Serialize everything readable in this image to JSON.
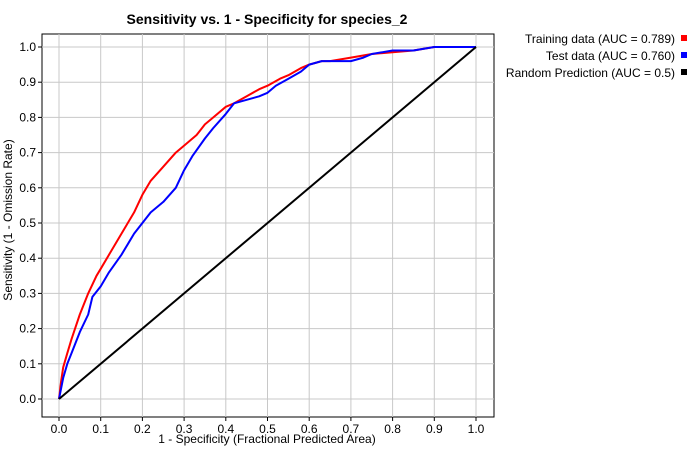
{
  "chart_data": {
    "type": "line",
    "title": "Sensitivity vs. 1 - Specificity for species_2",
    "xlabel": "1 - Specificity  (Fractional Predicted Area)",
    "ylabel": "Sensitivity  (1 - Omission Rate)",
    "xlim": [
      0,
      1
    ],
    "ylim": [
      0,
      1
    ],
    "xticks": [
      "0.0",
      "0.1",
      "0.2",
      "0.3",
      "0.4",
      "0.5",
      "0.6",
      "0.7",
      "0.8",
      "0.9",
      "1.0"
    ],
    "yticks": [
      "0.0",
      "0.1",
      "0.2",
      "0.3",
      "0.4",
      "0.5",
      "0.6",
      "0.7",
      "0.8",
      "0.9",
      "1.0"
    ],
    "grid": true,
    "legend_position": "top-right outside",
    "series": [
      {
        "name": "Training data (AUC = 0.789)",
        "color": "#ff0000",
        "x": [
          0.0,
          0.005,
          0.01,
          0.02,
          0.03,
          0.05,
          0.07,
          0.09,
          0.1,
          0.12,
          0.15,
          0.18,
          0.2,
          0.22,
          0.25,
          0.28,
          0.3,
          0.33,
          0.35,
          0.37,
          0.4,
          0.42,
          0.45,
          0.48,
          0.5,
          0.53,
          0.55,
          0.58,
          0.6,
          0.63,
          0.65,
          0.7,
          0.75,
          0.8,
          0.85,
          0.9,
          0.95,
          1.0
        ],
        "y": [
          0.0,
          0.05,
          0.09,
          0.13,
          0.17,
          0.24,
          0.3,
          0.35,
          0.37,
          0.41,
          0.47,
          0.53,
          0.58,
          0.62,
          0.66,
          0.7,
          0.72,
          0.75,
          0.78,
          0.8,
          0.83,
          0.84,
          0.86,
          0.88,
          0.89,
          0.91,
          0.92,
          0.94,
          0.95,
          0.96,
          0.96,
          0.97,
          0.98,
          0.985,
          0.99,
          1.0,
          1.0,
          1.0
        ]
      },
      {
        "name": "Test data (AUC = 0.760)",
        "color": "#0000ff",
        "x": [
          0.0,
          0.005,
          0.01,
          0.02,
          0.03,
          0.05,
          0.07,
          0.08,
          0.1,
          0.12,
          0.15,
          0.18,
          0.2,
          0.22,
          0.25,
          0.28,
          0.3,
          0.32,
          0.35,
          0.37,
          0.4,
          0.42,
          0.45,
          0.48,
          0.5,
          0.52,
          0.55,
          0.58,
          0.6,
          0.63,
          0.65,
          0.7,
          0.73,
          0.75,
          0.8,
          0.85,
          0.9,
          0.95,
          1.0
        ],
        "y": [
          0.0,
          0.03,
          0.06,
          0.1,
          0.13,
          0.19,
          0.24,
          0.29,
          0.32,
          0.36,
          0.41,
          0.47,
          0.5,
          0.53,
          0.56,
          0.6,
          0.65,
          0.69,
          0.74,
          0.77,
          0.81,
          0.84,
          0.85,
          0.86,
          0.87,
          0.89,
          0.91,
          0.93,
          0.95,
          0.96,
          0.96,
          0.96,
          0.97,
          0.98,
          0.99,
          0.99,
          1.0,
          1.0,
          1.0
        ]
      },
      {
        "name": "Random Prediction (AUC = 0.5)",
        "color": "#000000",
        "x": [
          0.0,
          1.0
        ],
        "y": [
          0.0,
          1.0
        ]
      }
    ]
  }
}
